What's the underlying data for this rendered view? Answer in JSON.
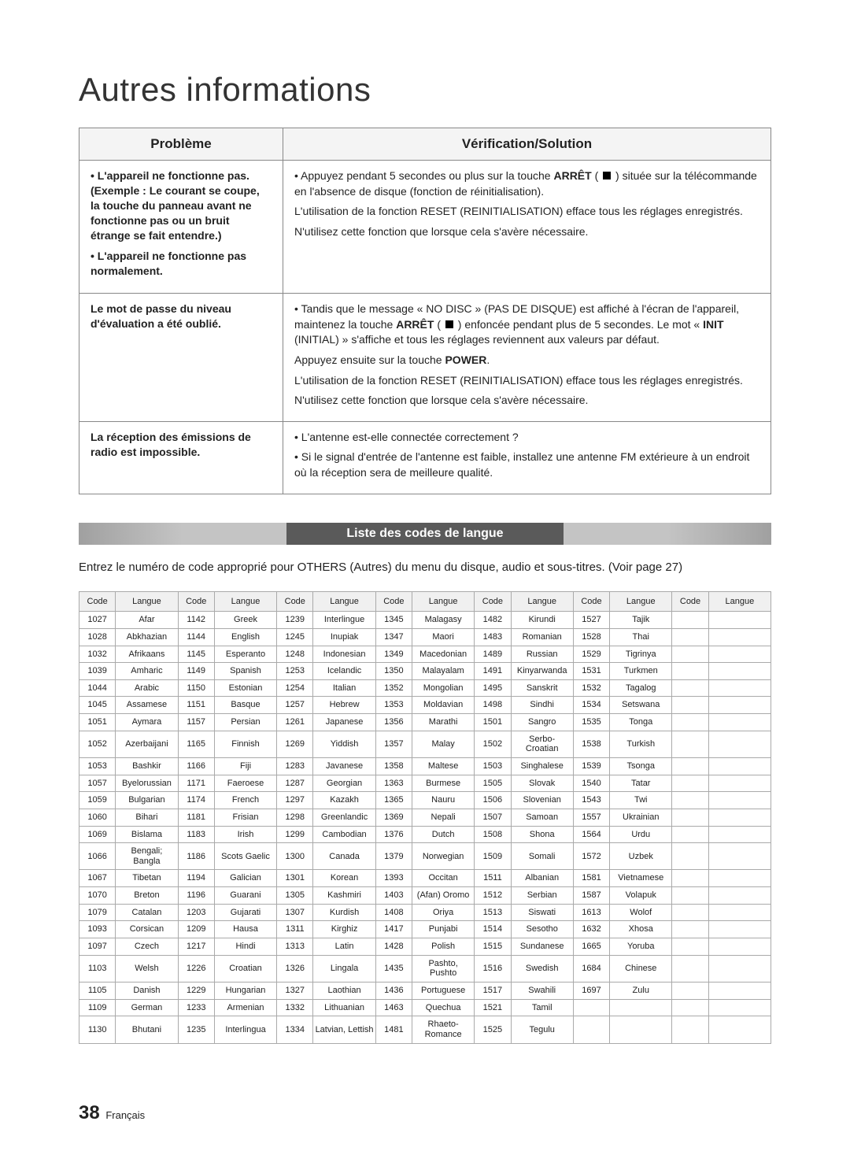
{
  "title": "Autres informations",
  "troubleshoot": {
    "headers": {
      "problem": "Problème",
      "solution": "Vérification/Solution"
    },
    "rows": [
      {
        "problem_lines": [
          "• L'appareil ne fonctionne pas. (Exemple : Le courant se coupe, la touche du panneau avant ne fonctionne pas ou un bruit étrange se fait entendre.)",
          "• L'appareil ne fonctionne pas normalement."
        ],
        "solution_html": [
          "• Appuyez pendant 5 secondes ou plus sur la touche <b>ARRÊT</b> ( <sq></sq> ) située sur la télécommande en l'absence de disque (fonction de réinitialisation).",
          "L'utilisation de la fonction RESET (REINITIALISATION) efface tous les réglages enregistrés.",
          "N'utilisez cette fonction que lorsque cela s'avère nécessaire."
        ]
      },
      {
        "problem_lines": [
          "Le mot de passe du niveau d'évaluation a été oublié."
        ],
        "solution_html": [
          "• Tandis que le message « NO DISC » (PAS DE DISQUE) est affiché à l'écran de l'appareil, maintenez la touche <b>ARRÊT</b> ( <sq></sq> ) enfoncée pendant plus de 5 secondes. Le mot « <b>INIT</b> (INITIAL) » s'affiche et tous les réglages reviennent aux valeurs par défaut.",
          "Appuyez ensuite sur la touche <b>POWER</b>.",
          "L'utilisation de la fonction RESET (REINITIALISATION) efface tous les réglages enregistrés.",
          "N'utilisez cette fonction que lorsque cela s'avère nécessaire."
        ]
      },
      {
        "problem_lines": [
          "La réception des émissions de radio est impossible."
        ],
        "solution_html": [
          "• L'antenne est-elle connectée correctement ?",
          "• Si le signal d'entrée de l'antenne est faible, installez une antenne FM extérieure à un endroit où la réception sera de meilleure qualité."
        ]
      }
    ]
  },
  "section_title": "Liste des codes de langue",
  "intro": "Entrez le numéro de code approprié pour OTHERS (Autres) du menu du disque, audio et sous-titres. (Voir page 27)",
  "codes": {
    "headers": {
      "code": "Code",
      "lang": "Langue"
    },
    "num_col_pairs": 7,
    "rows": [
      [
        "1027",
        "Afar",
        "1142",
        "Greek",
        "1239",
        "Interlingue",
        "1345",
        "Malagasy",
        "1482",
        "Kirundi",
        "1527",
        "Tajik",
        "",
        ""
      ],
      [
        "1028",
        "Abkhazian",
        "1144",
        "English",
        "1245",
        "Inupiak",
        "1347",
        "Maori",
        "1483",
        "Romanian",
        "1528",
        "Thai",
        "",
        ""
      ],
      [
        "1032",
        "Afrikaans",
        "1145",
        "Esperanto",
        "1248",
        "Indonesian",
        "1349",
        "Macedonian",
        "1489",
        "Russian",
        "1529",
        "Tigrinya",
        "",
        ""
      ],
      [
        "1039",
        "Amharic",
        "1149",
        "Spanish",
        "1253",
        "Icelandic",
        "1350",
        "Malayalam",
        "1491",
        "Kinyarwanda",
        "1531",
        "Turkmen",
        "",
        ""
      ],
      [
        "1044",
        "Arabic",
        "1150",
        "Estonian",
        "1254",
        "Italian",
        "1352",
        "Mongolian",
        "1495",
        "Sanskrit",
        "1532",
        "Tagalog",
        "",
        ""
      ],
      [
        "1045",
        "Assamese",
        "1151",
        "Basque",
        "1257",
        "Hebrew",
        "1353",
        "Moldavian",
        "1498",
        "Sindhi",
        "1534",
        "Setswana",
        "",
        ""
      ],
      [
        "1051",
        "Aymara",
        "1157",
        "Persian",
        "1261",
        "Japanese",
        "1356",
        "Marathi",
        "1501",
        "Sangro",
        "1535",
        "Tonga",
        "",
        ""
      ],
      [
        "1052",
        "Azerbaijani",
        "1165",
        "Finnish",
        "1269",
        "Yiddish",
        "1357",
        "Malay",
        "1502",
        "Serbo-Croatian",
        "1538",
        "Turkish",
        "",
        ""
      ],
      [
        "1053",
        "Bashkir",
        "1166",
        "Fiji",
        "1283",
        "Javanese",
        "1358",
        "Maltese",
        "1503",
        "Singhalese",
        "1539",
        "Tsonga",
        "",
        ""
      ],
      [
        "1057",
        "Byelorussian",
        "1171",
        "Faeroese",
        "1287",
        "Georgian",
        "1363",
        "Burmese",
        "1505",
        "Slovak",
        "1540",
        "Tatar",
        "",
        ""
      ],
      [
        "1059",
        "Bulgarian",
        "1174",
        "French",
        "1297",
        "Kazakh",
        "1365",
        "Nauru",
        "1506",
        "Slovenian",
        "1543",
        "Twi",
        "",
        ""
      ],
      [
        "1060",
        "Bihari",
        "1181",
        "Frisian",
        "1298",
        "Greenlandic",
        "1369",
        "Nepali",
        "1507",
        "Samoan",
        "1557",
        "Ukrainian",
        "",
        ""
      ],
      [
        "1069",
        "Bislama",
        "1183",
        "Irish",
        "1299",
        "Cambodian",
        "1376",
        "Dutch",
        "1508",
        "Shona",
        "1564",
        "Urdu",
        "",
        ""
      ],
      [
        "1066",
        "Bengali; Bangla",
        "1186",
        "Scots Gaelic",
        "1300",
        "Canada",
        "1379",
        "Norwegian",
        "1509",
        "Somali",
        "1572",
        "Uzbek",
        "",
        ""
      ],
      [
        "1067",
        "Tibetan",
        "1194",
        "Galician",
        "1301",
        "Korean",
        "1393",
        "Occitan",
        "1511",
        "Albanian",
        "1581",
        "Vietnamese",
        "",
        ""
      ],
      [
        "1070",
        "Breton",
        "1196",
        "Guarani",
        "1305",
        "Kashmiri",
        "1403",
        "(Afan) Oromo",
        "1512",
        "Serbian",
        "1587",
        "Volapuk",
        "",
        ""
      ],
      [
        "1079",
        "Catalan",
        "1203",
        "Gujarati",
        "1307",
        "Kurdish",
        "1408",
        "Oriya",
        "1513",
        "Siswati",
        "1613",
        "Wolof",
        "",
        ""
      ],
      [
        "1093",
        "Corsican",
        "1209",
        "Hausa",
        "1311",
        "Kirghiz",
        "1417",
        "Punjabi",
        "1514",
        "Sesotho",
        "1632",
        "Xhosa",
        "",
        ""
      ],
      [
        "1097",
        "Czech",
        "1217",
        "Hindi",
        "1313",
        "Latin",
        "1428",
        "Polish",
        "1515",
        "Sundanese",
        "1665",
        "Yoruba",
        "",
        ""
      ],
      [
        "1103",
        "Welsh",
        "1226",
        "Croatian",
        "1326",
        "Lingala",
        "1435",
        "Pashto, Pushto",
        "1516",
        "Swedish",
        "1684",
        "Chinese",
        "",
        ""
      ],
      [
        "1105",
        "Danish",
        "1229",
        "Hungarian",
        "1327",
        "Laothian",
        "1436",
        "Portuguese",
        "1517",
        "Swahili",
        "1697",
        "Zulu",
        "",
        ""
      ],
      [
        "1109",
        "German",
        "1233",
        "Armenian",
        "1332",
        "Lithuanian",
        "1463",
        "Quechua",
        "1521",
        "Tamil",
        "",
        "",
        "",
        ""
      ],
      [
        "1130",
        "Bhutani",
        "1235",
        "Interlingua",
        "1334",
        "Latvian, Lettish",
        "1481",
        "Rhaeto-Romance",
        "1525",
        "Tegulu",
        "",
        "",
        "",
        ""
      ]
    ]
  },
  "footer": {
    "page": "38",
    "label": "Français"
  },
  "colors": {
    "page_bg": "#ffffff",
    "text": "#222222",
    "band_center": "#5a5a5a",
    "band_edge": "#c4c4c4",
    "border": "#888888",
    "codes_border": "#aaaaaa",
    "header_bg": "#f4f4f4"
  }
}
